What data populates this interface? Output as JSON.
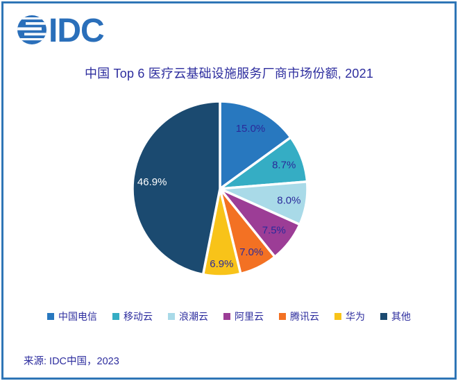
{
  "window": {
    "border_color": "#2e75b6",
    "background_color": "#ffffff"
  },
  "logo": {
    "text": "IDC",
    "color": "#2a6fba"
  },
  "header": {
    "title": "中国 Top 6 医疗云基础设施服务厂商市场份额, 2021",
    "title_color": "#2d2d9e"
  },
  "chart_data": {
    "type": "pie",
    "title": "中国 Top 6 医疗云基础设施服务厂商市场份额, 2021",
    "categories": [
      "中国电信",
      "移动云",
      "浪潮云",
      "阿里云",
      "腾讯云",
      "华为",
      "其他"
    ],
    "values": [
      15.0,
      8.7,
      8.0,
      7.5,
      7.0,
      6.9,
      46.9
    ],
    "value_labels": [
      "15.0%",
      "8.7%",
      "8.0%",
      "7.5%",
      "7.0%",
      "6.9%",
      "46.9%"
    ],
    "colors": [
      "#2878bf",
      "#35adc4",
      "#a9dae8",
      "#9c3d96",
      "#f37123",
      "#f8c319",
      "#1b4a70"
    ],
    "label_colors": [
      "#2a2a9a",
      "#2a2a9a",
      "#2a2a9a",
      "#2a2a9a",
      "#2a2a9a",
      "#2a2a9a",
      "#ffffff"
    ],
    "label_radius": [
      0.77,
      0.78,
      0.8,
      0.78,
      0.81,
      0.86,
      0.78
    ],
    "start_angle_deg": 0,
    "direction": "clockwise",
    "slice_gap_color": "#ffffff",
    "legend_position": "bottom",
    "legend_text_color": "#2d2d9e"
  },
  "footer": {
    "source": "来源: IDC中国，2023"
  }
}
